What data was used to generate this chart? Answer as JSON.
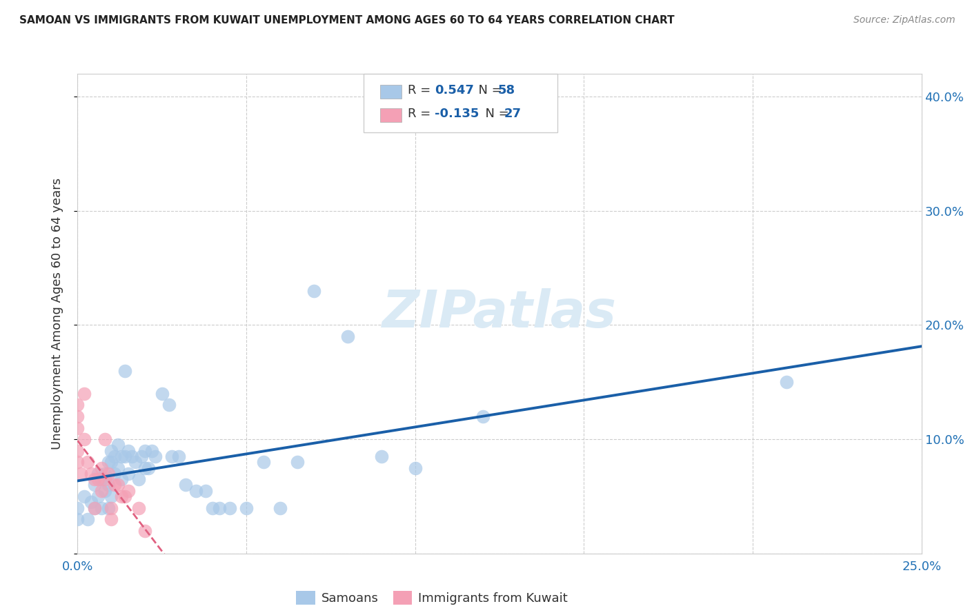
{
  "title": "SAMOAN VS IMMIGRANTS FROM KUWAIT UNEMPLOYMENT AMONG AGES 60 TO 64 YEARS CORRELATION CHART",
  "source": "Source: ZipAtlas.com",
  "ylabel": "Unemployment Among Ages 60 to 64 years",
  "xlim": [
    0.0,
    0.25
  ],
  "ylim": [
    0.0,
    0.42
  ],
  "x_ticks": [
    0.0,
    0.05,
    0.1,
    0.15,
    0.2,
    0.25
  ],
  "y_ticks": [
    0.0,
    0.1,
    0.2,
    0.3,
    0.4
  ],
  "y_tick_labels": [
    "",
    "10.0%",
    "20.0%",
    "30.0%",
    "40.0%"
  ],
  "legend_label1": "Samoans",
  "legend_label2": "Immigrants from Kuwait",
  "r1": 0.547,
  "n1": 58,
  "r2": -0.135,
  "n2": 27,
  "blue_scatter_color": "#a8c8e8",
  "pink_scatter_color": "#f4a0b5",
  "blue_line_color": "#1a5fa8",
  "pink_line_color": "#e06080",
  "watermark_color": "#daeaf5",
  "samoans_x": [
    0.0,
    0.0,
    0.002,
    0.003,
    0.004,
    0.005,
    0.005,
    0.006,
    0.006,
    0.007,
    0.007,
    0.008,
    0.008,
    0.009,
    0.009,
    0.009,
    0.01,
    0.01,
    0.01,
    0.011,
    0.011,
    0.012,
    0.012,
    0.013,
    0.013,
    0.014,
    0.014,
    0.015,
    0.015,
    0.016,
    0.017,
    0.018,
    0.019,
    0.02,
    0.02,
    0.021,
    0.022,
    0.023,
    0.025,
    0.027,
    0.028,
    0.03,
    0.032,
    0.035,
    0.038,
    0.04,
    0.042,
    0.045,
    0.05,
    0.055,
    0.06,
    0.065,
    0.07,
    0.08,
    0.09,
    0.1,
    0.12,
    0.21
  ],
  "samoans_y": [
    0.04,
    0.03,
    0.05,
    0.03,
    0.045,
    0.06,
    0.04,
    0.07,
    0.05,
    0.065,
    0.04,
    0.07,
    0.055,
    0.08,
    0.06,
    0.04,
    0.09,
    0.08,
    0.05,
    0.085,
    0.07,
    0.095,
    0.075,
    0.085,
    0.065,
    0.16,
    0.085,
    0.09,
    0.07,
    0.085,
    0.08,
    0.065,
    0.085,
    0.09,
    0.075,
    0.075,
    0.09,
    0.085,
    0.14,
    0.13,
    0.085,
    0.085,
    0.06,
    0.055,
    0.055,
    0.04,
    0.04,
    0.04,
    0.04,
    0.08,
    0.04,
    0.08,
    0.23,
    0.19,
    0.085,
    0.075,
    0.12,
    0.15
  ],
  "kuwait_x": [
    0.0,
    0.0,
    0.0,
    0.0,
    0.0,
    0.001,
    0.002,
    0.002,
    0.003,
    0.004,
    0.005,
    0.005,
    0.006,
    0.007,
    0.007,
    0.008,
    0.008,
    0.009,
    0.01,
    0.01,
    0.011,
    0.012,
    0.013,
    0.014,
    0.015,
    0.018,
    0.02
  ],
  "kuwait_y": [
    0.13,
    0.12,
    0.11,
    0.09,
    0.08,
    0.07,
    0.14,
    0.1,
    0.08,
    0.07,
    0.065,
    0.04,
    0.065,
    0.075,
    0.055,
    0.1,
    0.065,
    0.07,
    0.04,
    0.03,
    0.06,
    0.06,
    0.05,
    0.05,
    0.055,
    0.04,
    0.02
  ]
}
